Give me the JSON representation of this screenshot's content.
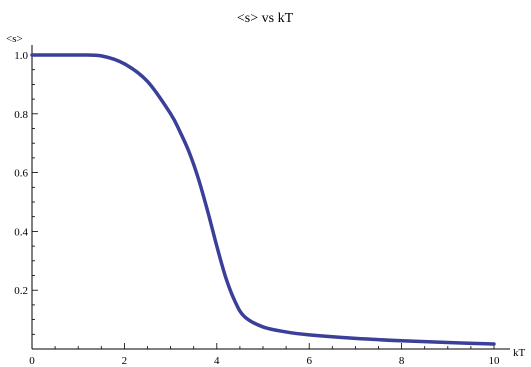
{
  "chart_data": {
    "type": "line",
    "title": "<s> vs kT",
    "xlabel": "kT",
    "ylabel": "<s>",
    "xlim": [
      0,
      10
    ],
    "ylim": [
      0,
      1.0
    ],
    "x_ticks": [
      0,
      2,
      4,
      6,
      8,
      10
    ],
    "y_ticks": [
      0.2,
      0.4,
      0.6,
      0.8,
      1.0
    ],
    "x_tick_labels": [
      "0",
      "2",
      "4",
      "6",
      "8",
      "10"
    ],
    "y_tick_labels": [
      "0.2",
      "0.4",
      "0.6",
      "0.8",
      "1.0"
    ],
    "grid": false,
    "series": [
      {
        "color": "#3a3f9a",
        "x": [
          0,
          0.5,
          1.0,
          1.5,
          2.0,
          2.5,
          3.0,
          3.2,
          3.4,
          3.6,
          3.8,
          4.0,
          4.2,
          4.4,
          4.6,
          5.0,
          5.5,
          6.0,
          7.0,
          8.0,
          9.0,
          10.0
        ],
        "y": [
          1.0,
          1.0,
          1.0,
          0.997,
          0.97,
          0.91,
          0.8,
          0.74,
          0.67,
          0.58,
          0.47,
          0.35,
          0.24,
          0.16,
          0.11,
          0.075,
          0.058,
          0.048,
          0.036,
          0.028,
          0.022,
          0.017
        ]
      }
    ]
  }
}
